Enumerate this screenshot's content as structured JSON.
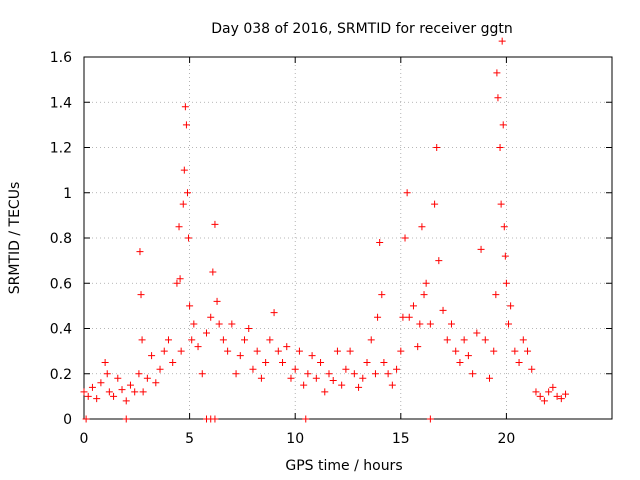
{
  "chart_data": {
    "type": "scatter",
    "title": "Day 038 of 2016, SRMTID for receiver ggtn",
    "xlabel": "GPS time / hours",
    "ylabel": "SRMTID / TECUs",
    "xlim": [
      0,
      25
    ],
    "ylim": [
      0,
      1.6
    ],
    "xticks": [
      0,
      5,
      10,
      15,
      20
    ],
    "yticks": [
      0,
      0.2,
      0.4,
      0.6,
      0.8,
      1,
      1.2,
      1.4,
      1.6
    ],
    "xtick_labels": [
      "0",
      "5",
      "10",
      "15",
      "20"
    ],
    "ytick_labels": [
      "0",
      "0.2",
      "0.4",
      "0.6",
      "0.8",
      "1",
      "1.2",
      "1.4",
      "1.6"
    ],
    "grid": true,
    "marker": "plus",
    "marker_color": "#ff0000",
    "series": [
      {
        "name": "SRMTID",
        "x": [
          0.0,
          0.2,
          0.4,
          0.6,
          0.8,
          1.0,
          1.1,
          1.2,
          1.4,
          1.6,
          1.8,
          2.0,
          2.2,
          2.4,
          2.6,
          2.65,
          2.7,
          2.75,
          2.8,
          3.0,
          3.2,
          3.4,
          3.6,
          3.8,
          4.0,
          4.2,
          4.4,
          4.5,
          4.55,
          4.6,
          4.7,
          4.75,
          4.8,
          4.85,
          4.9,
          4.95,
          5.0,
          5.1,
          5.2,
          5.4,
          5.6,
          5.8,
          6.0,
          6.1,
          6.2,
          6.3,
          6.4,
          6.6,
          6.8,
          7.0,
          7.2,
          7.4,
          7.6,
          7.8,
          8.0,
          8.2,
          8.4,
          8.6,
          8.8,
          9.0,
          9.2,
          9.4,
          9.6,
          9.8,
          10.0,
          10.2,
          10.4,
          10.6,
          10.8,
          11.0,
          11.2,
          11.4,
          11.6,
          11.8,
          12.0,
          12.2,
          12.4,
          12.6,
          12.8,
          13.0,
          13.2,
          13.4,
          13.6,
          13.8,
          13.9,
          14.0,
          14.1,
          14.2,
          14.4,
          14.6,
          14.8,
          15.0,
          15.1,
          15.2,
          15.3,
          15.4,
          15.6,
          15.8,
          15.9,
          16.0,
          16.1,
          16.2,
          16.4,
          16.6,
          16.7,
          16.8,
          17.0,
          17.2,
          17.4,
          17.6,
          17.8,
          18.0,
          18.2,
          18.4,
          18.6,
          18.8,
          19.0,
          19.2,
          19.4,
          19.5,
          19.55,
          19.6,
          19.7,
          19.75,
          19.8,
          19.85,
          19.9,
          19.95,
          20.0,
          20.1,
          20.2,
          20.4,
          20.6,
          20.8,
          21.0,
          21.2,
          21.4,
          21.6,
          21.8,
          22.0,
          22.2,
          22.4,
          22.6,
          22.8,
          0.1,
          2.0,
          5.8,
          6.0,
          6.2,
          10.5,
          16.4
        ],
        "y": [
          0.12,
          0.1,
          0.14,
          0.09,
          0.16,
          0.25,
          0.2,
          0.12,
          0.1,
          0.18,
          0.13,
          0.08,
          0.15,
          0.12,
          0.2,
          0.74,
          0.55,
          0.35,
          0.12,
          0.18,
          0.28,
          0.16,
          0.22,
          0.3,
          0.35,
          0.25,
          0.6,
          0.85,
          0.62,
          0.3,
          0.95,
          1.1,
          1.38,
          1.3,
          1.0,
          0.8,
          0.5,
          0.35,
          0.42,
          0.32,
          0.2,
          0.38,
          0.45,
          0.65,
          0.86,
          0.52,
          0.42,
          0.35,
          0.3,
          0.42,
          0.2,
          0.28,
          0.35,
          0.4,
          0.22,
          0.3,
          0.18,
          0.25,
          0.35,
          0.47,
          0.3,
          0.25,
          0.32,
          0.18,
          0.22,
          0.3,
          0.15,
          0.2,
          0.28,
          0.18,
          0.25,
          0.12,
          0.2,
          0.17,
          0.3,
          0.15,
          0.22,
          0.3,
          0.2,
          0.14,
          0.18,
          0.25,
          0.35,
          0.2,
          0.45,
          0.78,
          0.55,
          0.25,
          0.2,
          0.15,
          0.22,
          0.3,
          0.45,
          0.8,
          1.0,
          0.45,
          0.5,
          0.32,
          0.42,
          0.85,
          0.55,
          0.6,
          0.42,
          0.95,
          1.2,
          0.7,
          0.48,
          0.35,
          0.42,
          0.3,
          0.25,
          0.35,
          0.28,
          0.2,
          0.38,
          0.75,
          0.35,
          0.18,
          0.3,
          0.55,
          1.53,
          1.42,
          1.2,
          0.95,
          1.67,
          1.3,
          0.85,
          0.72,
          0.6,
          0.42,
          0.5,
          0.3,
          0.25,
          0.35,
          0.3,
          0.22,
          0.12,
          0.1,
          0.08,
          0.12,
          0.14,
          0.1,
          0.09,
          0.11,
          0.0,
          0.0,
          0.0,
          0.0,
          0.0,
          0.0,
          0.0
        ]
      }
    ]
  }
}
